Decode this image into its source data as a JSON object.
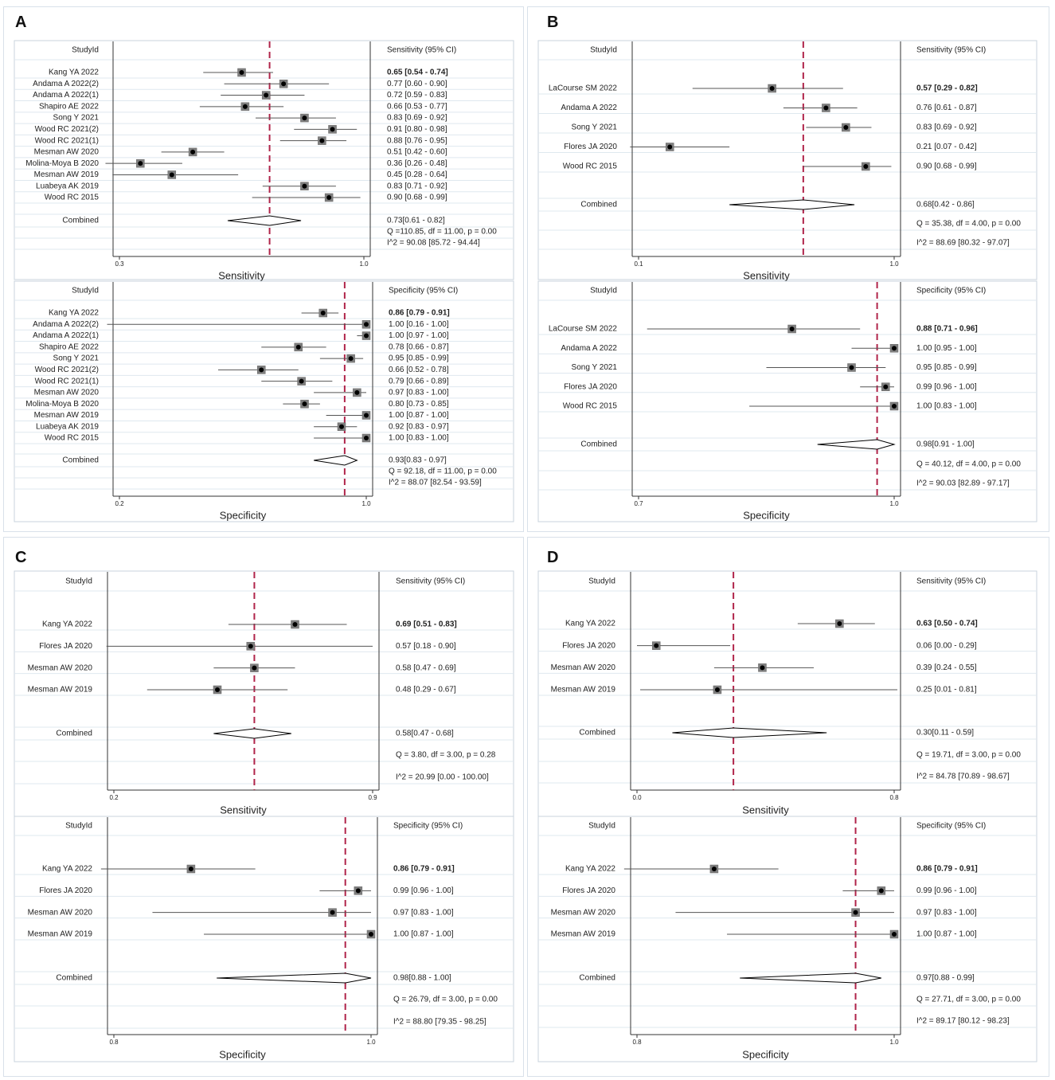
{
  "panels": [
    {
      "letter": "A"
    },
    {
      "letter": "B"
    },
    {
      "letter": "C"
    },
    {
      "letter": "D"
    }
  ],
  "colors": {
    "reference_line": "#b0244a",
    "grid": "#dfe8ef",
    "text": "#222222",
    "marker": "#7f7f7f"
  },
  "chart_data": [
    {
      "type": "forest",
      "panel": "A",
      "header_left": "StudyId",
      "header_right": "Sensitivity (95% CI)",
      "xlabel": "Sensitivity",
      "xlim": [
        0.3,
        1.0
      ],
      "ticks": [
        "0.3",
        "1.0"
      ],
      "tick_values": [
        0.3,
        1.0
      ],
      "reference": 0.73,
      "studies": [
        {
          "name": "Kang YA 2022",
          "est": 0.65,
          "lo": 0.54,
          "hi": 0.74,
          "ci_text": "0.65 [0.54 - 0.74]"
        },
        {
          "name": "Andama A 2022(2)",
          "est": 0.77,
          "lo": 0.6,
          "hi": 0.9,
          "ci_text": "0.77 [0.60 - 0.90]"
        },
        {
          "name": "Andama A 2022(1)",
          "est": 0.72,
          "lo": 0.59,
          "hi": 0.83,
          "ci_text": "0.72 [0.59 - 0.83]"
        },
        {
          "name": "Shapiro AE 2022",
          "est": 0.66,
          "lo": 0.53,
          "hi": 0.77,
          "ci_text": "0.66 [0.53 - 0.77]"
        },
        {
          "name": "Song Y 2021",
          "est": 0.83,
          "lo": 0.69,
          "hi": 0.92,
          "ci_text": "0.83 [0.69 - 0.92]"
        },
        {
          "name": "Wood RC 2021(2)",
          "est": 0.91,
          "lo": 0.8,
          "hi": 0.98,
          "ci_text": "0.91 [0.80 - 0.98]"
        },
        {
          "name": "Wood RC 2021(1)",
          "est": 0.88,
          "lo": 0.76,
          "hi": 0.95,
          "ci_text": "0.88 [0.76 - 0.95]"
        },
        {
          "name": "Mesman AW 2020",
          "est": 0.51,
          "lo": 0.42,
          "hi": 0.6,
          "ci_text": "0.51 [0.42 - 0.60]"
        },
        {
          "name": "Molina-Moya B 2020",
          "est": 0.36,
          "lo": 0.26,
          "hi": 0.48,
          "ci_text": "0.36 [0.26 - 0.48]"
        },
        {
          "name": "Mesman AW 2019",
          "est": 0.45,
          "lo": 0.28,
          "hi": 0.64,
          "ci_text": "0.45 [0.28 - 0.64]"
        },
        {
          "name": "Luabeya AK 2019",
          "est": 0.83,
          "lo": 0.71,
          "hi": 0.92,
          "ci_text": "0.83 [0.71 - 0.92]"
        },
        {
          "name": "Wood RC 2015",
          "est": 0.9,
          "lo": 0.68,
          "hi": 0.99,
          "ci_text": "0.90 [0.68 - 0.99]"
        }
      ],
      "combined": {
        "label": "Combined",
        "est": 0.73,
        "lo": 0.61,
        "hi": 0.82,
        "ci_text": "0.73[0.61 - 0.82]"
      },
      "q_text": "Q =110.85, df = 11.00, p =  0.00",
      "i2_text": "I^2 = 90.08 [85.72 - 94.44]"
    },
    {
      "type": "forest",
      "panel": "A",
      "header_left": "StudyId",
      "header_right": "Specificity (95% CI)",
      "xlabel": "Specificity",
      "xlim": [
        0.2,
        1.0
      ],
      "ticks": [
        "0.2",
        "1.0"
      ],
      "tick_values": [
        0.2,
        1.0
      ],
      "reference": 0.93,
      "studies": [
        {
          "name": "Kang YA 2022",
          "est": 0.86,
          "lo": 0.79,
          "hi": 0.91,
          "ci_text": "0.86 [0.79 - 0.91]"
        },
        {
          "name": "Andama A 2022(2)",
          "est": 1.0,
          "lo": 0.16,
          "hi": 1.0,
          "ci_text": "1.00 [0.16 - 1.00]"
        },
        {
          "name": "Andama A 2022(1)",
          "est": 1.0,
          "lo": 0.97,
          "hi": 1.0,
          "ci_text": "1.00 [0.97 - 1.00]"
        },
        {
          "name": "Shapiro AE 2022",
          "est": 0.78,
          "lo": 0.66,
          "hi": 0.87,
          "ci_text": "0.78 [0.66 - 0.87]"
        },
        {
          "name": "Song Y 2021",
          "est": 0.95,
          "lo": 0.85,
          "hi": 0.99,
          "ci_text": "0.95 [0.85 - 0.99]"
        },
        {
          "name": "Wood RC 2021(2)",
          "est": 0.66,
          "lo": 0.52,
          "hi": 0.78,
          "ci_text": "0.66 [0.52 - 0.78]"
        },
        {
          "name": "Wood RC 2021(1)",
          "est": 0.79,
          "lo": 0.66,
          "hi": 0.89,
          "ci_text": "0.79 [0.66 - 0.89]"
        },
        {
          "name": "Mesman AW 2020",
          "est": 0.97,
          "lo": 0.83,
          "hi": 1.0,
          "ci_text": "0.97 [0.83 - 1.00]"
        },
        {
          "name": "Molina-Moya B 2020",
          "est": 0.8,
          "lo": 0.73,
          "hi": 0.85,
          "ci_text": "0.80 [0.73 - 0.85]"
        },
        {
          "name": "Mesman AW 2019",
          "est": 1.0,
          "lo": 0.87,
          "hi": 1.0,
          "ci_text": "1.00 [0.87 - 1.00]"
        },
        {
          "name": "Luabeya AK 2019",
          "est": 0.92,
          "lo": 0.83,
          "hi": 0.97,
          "ci_text": "0.92 [0.83 - 0.97]"
        },
        {
          "name": "Wood RC 2015",
          "est": 1.0,
          "lo": 0.83,
          "hi": 1.0,
          "ci_text": "1.00 [0.83 - 1.00]"
        }
      ],
      "combined": {
        "label": "Combined",
        "est": 0.93,
        "lo": 0.83,
        "hi": 0.97,
        "ci_text": "0.93[0.83 - 0.97]"
      },
      "q_text": "Q = 92.18, df = 11.00, p =  0.00",
      "i2_text": "I^2 = 88.07 [82.54 - 93.59]"
    },
    {
      "type": "forest",
      "panel": "B",
      "header_left": "StudyId",
      "header_right": "Sensitivity (95% CI)",
      "xlabel": "Sensitivity",
      "xlim": [
        0.1,
        1.0
      ],
      "ticks": [
        "0.1",
        "1.0"
      ],
      "tick_values": [
        0.1,
        1.0
      ],
      "reference": 0.68,
      "studies": [
        {
          "name": "LaCourse SM 2022",
          "est": 0.57,
          "lo": 0.29,
          "hi": 0.82,
          "ci_text": "0.57 [0.29 - 0.82]"
        },
        {
          "name": "Andama A 2022",
          "est": 0.76,
          "lo": 0.61,
          "hi": 0.87,
          "ci_text": "0.76 [0.61 - 0.87]"
        },
        {
          "name": "Song Y 2021",
          "est": 0.83,
          "lo": 0.69,
          "hi": 0.92,
          "ci_text": "0.83 [0.69 - 0.92]"
        },
        {
          "name": "Flores JA 2020",
          "est": 0.21,
          "lo": 0.07,
          "hi": 0.42,
          "ci_text": "0.21 [0.07 - 0.42]"
        },
        {
          "name": "Wood RC 2015",
          "est": 0.9,
          "lo": 0.68,
          "hi": 0.99,
          "ci_text": "0.90 [0.68 - 0.99]"
        }
      ],
      "combined": {
        "label": "Combined",
        "est": 0.68,
        "lo": 0.42,
        "hi": 0.86,
        "ci_text": "0.68[0.42 - 0.86]"
      },
      "q_text": "Q = 35.38, df = 4.00, p =  0.00",
      "i2_text": "I^2 = 88.69 [80.32 - 97.07]"
    },
    {
      "type": "forest",
      "panel": "B",
      "header_left": "StudyId",
      "header_right": "Specificity (95% CI)",
      "xlabel": "Specificity",
      "xlim": [
        0.7,
        1.0
      ],
      "ticks": [
        "0.7",
        "1.0"
      ],
      "tick_values": [
        0.7,
        1.0
      ],
      "reference": 0.98,
      "studies": [
        {
          "name": "LaCourse SM 2022",
          "est": 0.88,
          "lo": 0.71,
          "hi": 0.96,
          "ci_text": "0.88 [0.71 - 0.96]"
        },
        {
          "name": "Andama A 2022",
          "est": 1.0,
          "lo": 0.95,
          "hi": 1.0,
          "ci_text": "1.00 [0.95 - 1.00]"
        },
        {
          "name": "Song Y 2021",
          "est": 0.95,
          "lo": 0.85,
          "hi": 0.99,
          "ci_text": "0.95 [0.85 - 0.99]"
        },
        {
          "name": "Flores JA 2020",
          "est": 0.99,
          "lo": 0.96,
          "hi": 1.0,
          "ci_text": "0.99 [0.96 - 1.00]"
        },
        {
          "name": "Wood RC 2015",
          "est": 1.0,
          "lo": 0.83,
          "hi": 1.0,
          "ci_text": "1.00 [0.83 - 1.00]"
        }
      ],
      "combined": {
        "label": "Combined",
        "est": 0.98,
        "lo": 0.91,
        "hi": 1.0,
        "ci_text": "0.98[0.91 - 1.00]"
      },
      "q_text": "Q = 40.12, df = 4.00, p =  0.00",
      "i2_text": "I^2 = 90.03 [82.89 - 97.17]"
    },
    {
      "type": "forest",
      "panel": "C",
      "header_left": "StudyId",
      "header_right": "Sensitivity (95% CI)",
      "xlabel": "Sensitivity",
      "xlim": [
        0.2,
        0.9
      ],
      "ticks": [
        "0.2",
        "0.9"
      ],
      "tick_values": [
        0.2,
        0.9
      ],
      "reference": 0.58,
      "studies": [
        {
          "name": "Kang YA 2022",
          "est": 0.69,
          "lo": 0.51,
          "hi": 0.83,
          "ci_text": "0.69 [0.51 - 0.83]"
        },
        {
          "name": "Flores JA 2020",
          "est": 0.57,
          "lo": 0.18,
          "hi": 0.9,
          "ci_text": "0.57 [0.18 - 0.90]"
        },
        {
          "name": "Mesman AW 2020",
          "est": 0.58,
          "lo": 0.47,
          "hi": 0.69,
          "ci_text": "0.58 [0.47 - 0.69]"
        },
        {
          "name": "Mesman AW 2019",
          "est": 0.48,
          "lo": 0.29,
          "hi": 0.67,
          "ci_text": "0.48 [0.29 - 0.67]"
        }
      ],
      "combined": {
        "label": "Combined",
        "est": 0.58,
        "lo": 0.47,
        "hi": 0.68,
        "ci_text": "0.58[0.47 - 0.68]"
      },
      "q_text": "Q =  3.80, df = 3.00, p =  0.28",
      "i2_text": "I^2 = 20.99 [0.00 - 100.00]"
    },
    {
      "type": "forest",
      "panel": "C",
      "header_left": "StudyId",
      "header_right": "Specificity (95% CI)",
      "xlabel": "Specificity",
      "xlim": [
        0.8,
        1.0
      ],
      "ticks": [
        "0.8",
        "1.0"
      ],
      "tick_values": [
        0.8,
        1.0
      ],
      "reference": 0.98,
      "studies": [
        {
          "name": "Kang YA 2022",
          "est": 0.86,
          "lo": 0.79,
          "hi": 0.91,
          "ci_text": "0.86 [0.79 - 0.91]"
        },
        {
          "name": "Flores JA 2020",
          "est": 0.99,
          "lo": 0.96,
          "hi": 1.0,
          "ci_text": "0.99 [0.96 - 1.00]"
        },
        {
          "name": "Mesman AW 2020",
          "est": 0.97,
          "lo": 0.83,
          "hi": 1.0,
          "ci_text": "0.97 [0.83 - 1.00]"
        },
        {
          "name": "Mesman AW 2019",
          "est": 1.0,
          "lo": 0.87,
          "hi": 1.0,
          "ci_text": "1.00 [0.87 - 1.00]"
        }
      ],
      "combined": {
        "label": "Combined",
        "est": 0.98,
        "lo": 0.88,
        "hi": 1.0,
        "ci_text": "0.98[0.88 - 1.00]"
      },
      "q_text": "Q = 26.79, df = 3.00, p =  0.00",
      "i2_text": "I^2 = 88.80 [79.35 - 98.25]"
    },
    {
      "type": "forest",
      "panel": "D",
      "header_left": "StudyId",
      "header_right": "Sensitivity (95% CI)",
      "xlabel": "Sensitivity",
      "xlim": [
        0.0,
        0.8
      ],
      "ticks": [
        "0.0",
        "0.8"
      ],
      "tick_values": [
        0.0,
        0.8
      ],
      "reference": 0.3,
      "studies": [
        {
          "name": "Kang YA 2022",
          "est": 0.63,
          "lo": 0.5,
          "hi": 0.74,
          "ci_text": "0.63 [0.50 - 0.74]"
        },
        {
          "name": "Flores JA 2020",
          "est": 0.06,
          "lo": 0.0,
          "hi": 0.29,
          "ci_text": "0.06 [0.00 - 0.29]"
        },
        {
          "name": "Mesman AW 2020",
          "est": 0.39,
          "lo": 0.24,
          "hi": 0.55,
          "ci_text": "0.39 [0.24 - 0.55]"
        },
        {
          "name": "Mesman AW 2019",
          "est": 0.25,
          "lo": 0.01,
          "hi": 0.81,
          "ci_text": "0.25 [0.01 - 0.81]"
        }
      ],
      "combined": {
        "label": "Combined",
        "est": 0.3,
        "lo": 0.11,
        "hi": 0.59,
        "ci_text": "0.30[0.11 - 0.59]"
      },
      "q_text": "Q = 19.71, df = 3.00, p =  0.00",
      "i2_text": "I^2 = 84.78 [70.89 - 98.67]"
    },
    {
      "type": "forest",
      "panel": "D",
      "header_left": "StudyId",
      "header_right": "Specificity (95% CI)",
      "xlabel": "Specificity",
      "xlim": [
        0.8,
        1.0
      ],
      "ticks": [
        "0.8",
        "1.0"
      ],
      "tick_values": [
        0.8,
        1.0
      ],
      "reference": 0.97,
      "studies": [
        {
          "name": "Kang YA 2022",
          "est": 0.86,
          "lo": 0.79,
          "hi": 0.91,
          "ci_text": "0.86 [0.79 - 0.91]"
        },
        {
          "name": "Flores JA 2020",
          "est": 0.99,
          "lo": 0.96,
          "hi": 1.0,
          "ci_text": "0.99 [0.96 - 1.00]"
        },
        {
          "name": "Mesman AW 2020",
          "est": 0.97,
          "lo": 0.83,
          "hi": 1.0,
          "ci_text": "0.97 [0.83 - 1.00]"
        },
        {
          "name": "Mesman AW 2019",
          "est": 1.0,
          "lo": 0.87,
          "hi": 1.0,
          "ci_text": "1.00 [0.87 - 1.00]"
        }
      ],
      "combined": {
        "label": "Combined",
        "est": 0.97,
        "lo": 0.88,
        "hi": 0.99,
        "ci_text": "0.97[0.88 - 0.99]"
      },
      "q_text": "Q = 27.71, df = 3.00, p =  0.00",
      "i2_text": "I^2 = 89.17 [80.12 - 98.23]"
    }
  ]
}
